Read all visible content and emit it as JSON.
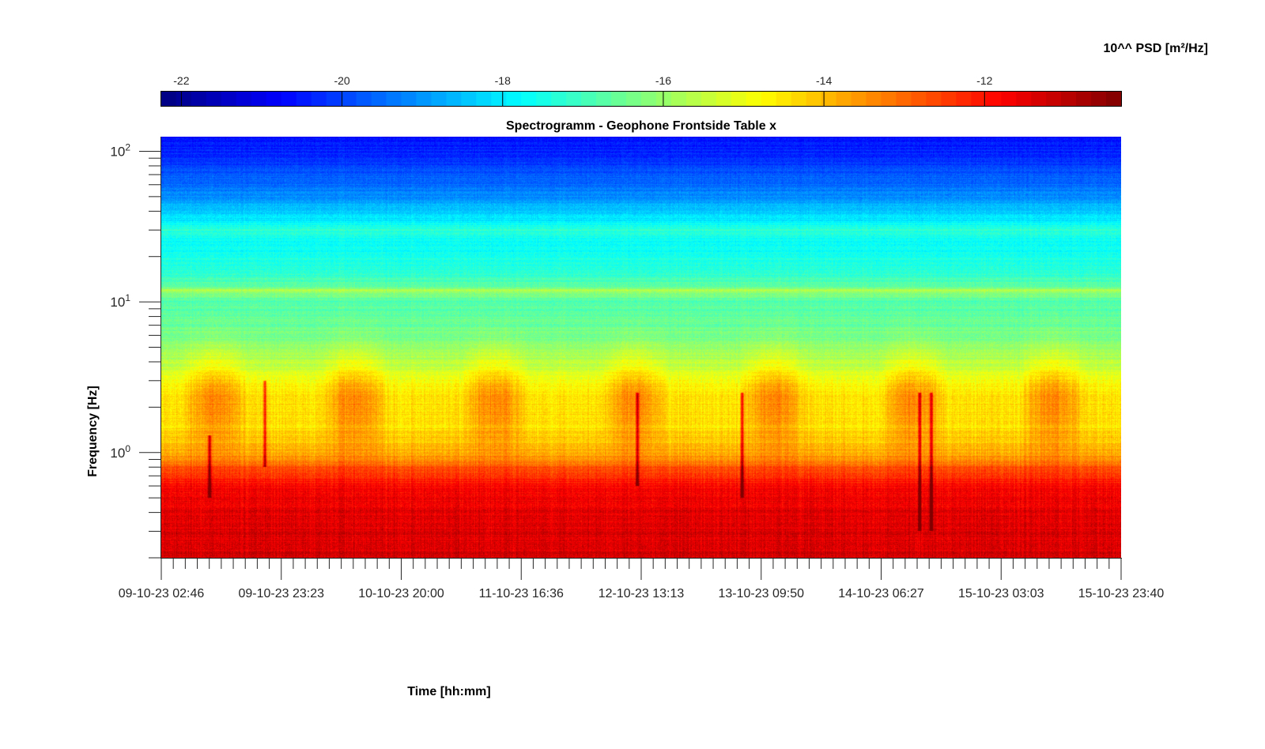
{
  "chart_data": {
    "type": "heatmap",
    "title": "Spectrogramm - Geophone Frontside Table x",
    "xlabel": "Time [hh:mm]",
    "ylabel": "Frequency [Hz]",
    "colorbar": {
      "label": "10^^ PSD [m²/Hz]",
      "range": [
        -22.25,
        -10.3
      ],
      "ticks": [
        -22,
        -20,
        -18,
        -16,
        -14,
        -12
      ],
      "tick_labels": [
        "-22",
        "-20",
        "-18",
        "-16",
        "-14",
        "-12"
      ],
      "position": "top",
      "colormap": "jet"
    },
    "x_tick_labels": [
      "09-10-23 02:46",
      "09-10-23 23:23",
      "10-10-23 20:00",
      "11-10-23 16:36",
      "12-10-23 13:13",
      "13-10-23 09:50",
      "14-10-23 06:27",
      "15-10-23 03:03",
      "15-10-23 23:40"
    ],
    "y_scale": "log",
    "ylim": [
      0.2,
      125
    ],
    "y_ticks": [
      1,
      10,
      100
    ],
    "y_tick_labels": [
      {
        "base": "10",
        "exp": "0"
      },
      {
        "base": "10",
        "exp": "1"
      },
      {
        "base": "10",
        "exp": "2"
      }
    ],
    "grid": false,
    "spectral_profile": {
      "frequency_hz": [
        0.2,
        0.3,
        0.45,
        0.6,
        0.8,
        1.0,
        1.5,
        2.5,
        4.0,
        6.0,
        10.0,
        11.5,
        12.0,
        12.5,
        16.0,
        25.0,
        30.0,
        35.0,
        50.0,
        80.0,
        125.0
      ],
      "log10_psd": [
        -11.3,
        -11.4,
        -11.6,
        -11.8,
        -12.8,
        -13.9,
        -14.4,
        -14.5,
        -15.6,
        -16.4,
        -16.8,
        -16.2,
        -15.6,
        -16.6,
        -17.3,
        -17.7,
        -17.2,
        -18.0,
        -19.1,
        -20.0,
        -20.6
      ]
    },
    "transient_events": [
      {
        "time": "09-10-23 11:00",
        "fmin_hz": 0.5,
        "fmax_hz": 1.3
      },
      {
        "time": "09-10-23 20:30",
        "fmin_hz": 0.8,
        "fmax_hz": 3.0
      },
      {
        "time": "12-10-23 12:30",
        "fmin_hz": 0.6,
        "fmax_hz": 2.5
      },
      {
        "time": "13-10-23 06:30",
        "fmin_hz": 0.5,
        "fmax_hz": 2.5
      },
      {
        "time": "14-10-23 13:00",
        "fmin_hz": 0.3,
        "fmax_hz": 2.5
      },
      {
        "time": "14-10-23 15:00",
        "fmin_hz": 0.3,
        "fmax_hz": 2.5
      }
    ]
  }
}
